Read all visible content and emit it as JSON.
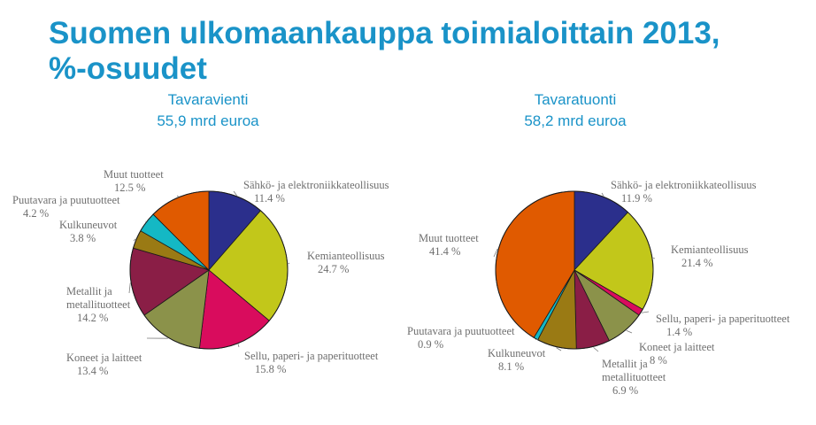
{
  "page": {
    "title_line1": "Suomen ulkomaankauppa toimialoittain 2013,",
    "title_line2": "%-osuudet"
  },
  "chart_data": [
    {
      "type": "pie",
      "title": "Tavaravienti",
      "subtitle": "55,9 mrd euroa",
      "slices": [
        {
          "label": [
            "Sähkö- ja elektroniikkateollisuus"
          ],
          "value": 11.4,
          "value_label": "11.4 %",
          "color": "#2b2f8c"
        },
        {
          "label": [
            "Kemianteollisuus"
          ],
          "value": 24.7,
          "value_label": "24.7 %",
          "color": "#c2c71a"
        },
        {
          "label": [
            "Sellu, paperi- ja paperituotteet"
          ],
          "value": 15.8,
          "value_label": "15.8 %",
          "color": "#d90c5d"
        },
        {
          "label": [
            "Koneet ja laitteet"
          ],
          "value": 13.4,
          "value_label": "13.4 %",
          "color": "#8b924a"
        },
        {
          "label": [
            "Metallit ja",
            "metallituotteet"
          ],
          "value": 14.2,
          "value_label": "14.2 %",
          "color": "#8a1e46"
        },
        {
          "label": [
            "Kulkuneuvot"
          ],
          "value": 3.8,
          "value_label": "3.8 %",
          "color": "#9a7a14"
        },
        {
          "label": [
            "Puutavara ja puutuotteet"
          ],
          "value": 4.2,
          "value_label": "4.2 %",
          "color": "#14b8c4"
        },
        {
          "label": [
            "Muut tuotteet"
          ],
          "value": 12.5,
          "value_label": "12.5 %",
          "color": "#e05a00"
        }
      ]
    },
    {
      "type": "pie",
      "title": "Tavaratuonti",
      "subtitle": "58,2 mrd euroa",
      "slices": [
        {
          "label": [
            "Sähkö- ja elektroniikkateollisuus"
          ],
          "value": 11.9,
          "value_label": "11.9 %",
          "color": "#2b2f8c"
        },
        {
          "label": [
            "Kemianteollisuus"
          ],
          "value": 21.4,
          "value_label": "21.4 %",
          "color": "#c2c71a"
        },
        {
          "label": [
            "Sellu, paperi- ja paperituotteet"
          ],
          "value": 1.4,
          "value_label": "1.4 %",
          "color": "#d90c5d"
        },
        {
          "label": [
            "Koneet ja laitteet"
          ],
          "value": 8,
          "value_label": "8 %",
          "color": "#8b924a"
        },
        {
          "label": [
            "Metallit ja",
            "metallituotteet"
          ],
          "value": 6.9,
          "value_label": "6.9 %",
          "color": "#8a1e46"
        },
        {
          "label": [
            "Kulkuneuvot"
          ],
          "value": 8.1,
          "value_label": "8.1 %",
          "color": "#9a7a14"
        },
        {
          "label": [
            "Puutavara ja puutuotteet"
          ],
          "value": 0.9,
          "value_label": "0.9 %",
          "color": "#14b8c4"
        },
        {
          "label": [
            "Muut tuotteet"
          ],
          "value": 41.4,
          "value_label": "41.4 %",
          "color": "#e05a00"
        }
      ]
    }
  ]
}
